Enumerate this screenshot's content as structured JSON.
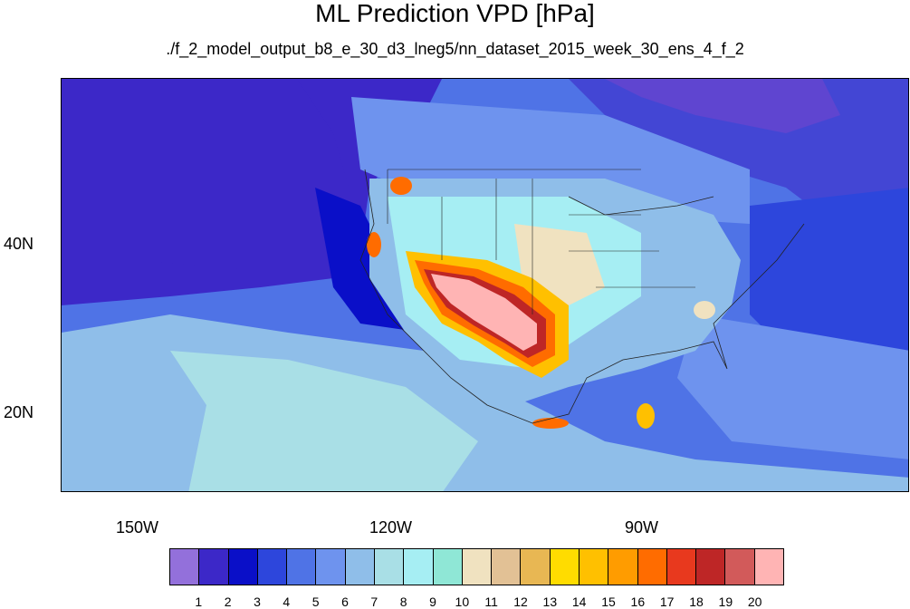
{
  "title": "ML Prediction VPD [hPa]",
  "subtitle": "./f_2_model_output_b8_e_30_d3_lneg5/nn_dataset_2015_week_30_ens_4_f_2",
  "axes": {
    "lon_ticks": [
      "150W",
      "120W",
      "90W"
    ],
    "lat_ticks": [
      "40N",
      "20N"
    ]
  },
  "colorbar": {
    "colors": [
      "#9370db",
      "#3c28c8",
      "#0a0fc8",
      "#2d46dc",
      "#4f73e6",
      "#6e93ee",
      "#8fbee9",
      "#a9dfe6",
      "#a6eef3",
      "#8fe7d6",
      "#f0e2c0",
      "#e2c195",
      "#e8b753",
      "#ffdc00",
      "#ffc000",
      "#ff9c00",
      "#ff6c00",
      "#e8391e",
      "#be2626",
      "#d25a5a",
      "#ffb4b4"
    ],
    "labels": [
      "1",
      "2",
      "3",
      "4",
      "5",
      "6",
      "7",
      "8",
      "9",
      "10",
      "11",
      "12",
      "13",
      "14",
      "15",
      "16",
      "17",
      "18",
      "19",
      "20"
    ]
  }
}
